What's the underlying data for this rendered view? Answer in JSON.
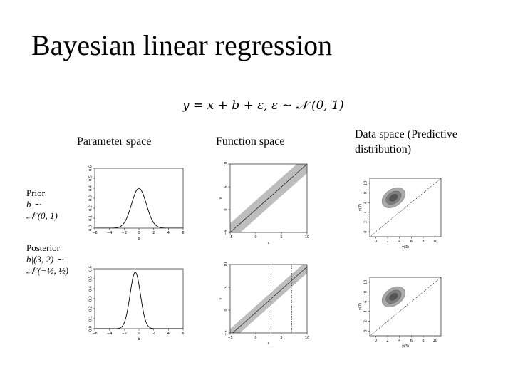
{
  "slide": {
    "title": "Bayesian linear regression",
    "equation": "y = x + b + ε, ε ∼ 𝒩 (0, 1)"
  },
  "columns": {
    "parameter": "Parameter space",
    "function": "Function space",
    "data_line1": "Data space (Predictive",
    "data_line2": "distribution)"
  },
  "rows": {
    "prior_label": "Prior",
    "prior_math1": "b ∼",
    "prior_math2": "𝒩 (0, 1)",
    "posterior_label": "Posterior",
    "posterior_math1": "b|(3, 2) ∼",
    "posterior_math2": "𝒩 (−½, ½)"
  },
  "chart_data": [
    {
      "type": "line",
      "panel": "prior-parameter",
      "xlabel": "b",
      "x_ticks": [
        "−6",
        "−4",
        "−2",
        "0",
        "2",
        "4",
        "6"
      ],
      "y_ticks": [
        "0.0",
        "0.1",
        "0.2",
        "0.3",
        "0.4",
        "0.5",
        "0.6"
      ],
      "xlim": [
        -6,
        6
      ],
      "ylim": [
        0,
        0.6
      ],
      "density": {
        "mean": 0,
        "variance": 1
      }
    },
    {
      "type": "line",
      "panel": "posterior-parameter",
      "xlabel": "b",
      "x_ticks": [
        "−6",
        "−4",
        "−2",
        "0",
        "2",
        "4",
        "6"
      ],
      "y_ticks": [
        "0.0",
        "0.1",
        "0.2",
        "0.3",
        "0.4",
        "0.5",
        "0.6"
      ],
      "xlim": [
        -6,
        6
      ],
      "ylim": [
        0,
        0.6
      ],
      "density": {
        "mean": -0.5,
        "variance": 0.5
      }
    },
    {
      "type": "area",
      "panel": "prior-function",
      "xlabel": "x",
      "ylabel": "y",
      "x_ticks": [
        "−5",
        "0",
        "5",
        "10"
      ],
      "y_ticks": [
        "−5",
        "0",
        "5",
        "10"
      ],
      "xlim": [
        -5,
        10
      ],
      "ylim": [
        -5,
        10
      ],
      "line": {
        "slope": 1,
        "intercept": 0
      },
      "band_halfwidth": 2,
      "vlines": []
    },
    {
      "type": "area",
      "panel": "posterior-function",
      "xlabel": "x",
      "ylabel": "y",
      "x_ticks": [
        "−5",
        "0",
        "5",
        "10"
      ],
      "y_ticks": [
        "−5",
        "0",
        "5",
        "10"
      ],
      "xlim": [
        -5,
        10
      ],
      "ylim": [
        -5,
        10
      ],
      "line": {
        "slope": 1,
        "intercept": -0.5
      },
      "band_halfwidth": 1.4,
      "vlines": [
        3,
        7
      ]
    },
    {
      "type": "heatmap",
      "panel": "prior-data",
      "xlabel": "y(3)",
      "ylabel": "y(7)",
      "x_ticks": [
        "0",
        "2",
        "4",
        "6",
        "8",
        "10"
      ],
      "y_ticks": [
        "0",
        "2",
        "4",
        "6",
        "8",
        "10"
      ],
      "xlim": [
        -1,
        11
      ],
      "ylim": [
        -1,
        11
      ],
      "contour_center": [
        3,
        7
      ]
    },
    {
      "type": "heatmap",
      "panel": "posterior-data",
      "xlabel": "y(3)",
      "ylabel": "y(7)",
      "x_ticks": [
        "0",
        "2",
        "4",
        "6",
        "8",
        "10"
      ],
      "y_ticks": [
        "0",
        "2",
        "4",
        "6",
        "8",
        "10"
      ],
      "xlim": [
        -1,
        11
      ],
      "ylim": [
        -1,
        11
      ],
      "contour_center": [
        3,
        7
      ]
    }
  ]
}
